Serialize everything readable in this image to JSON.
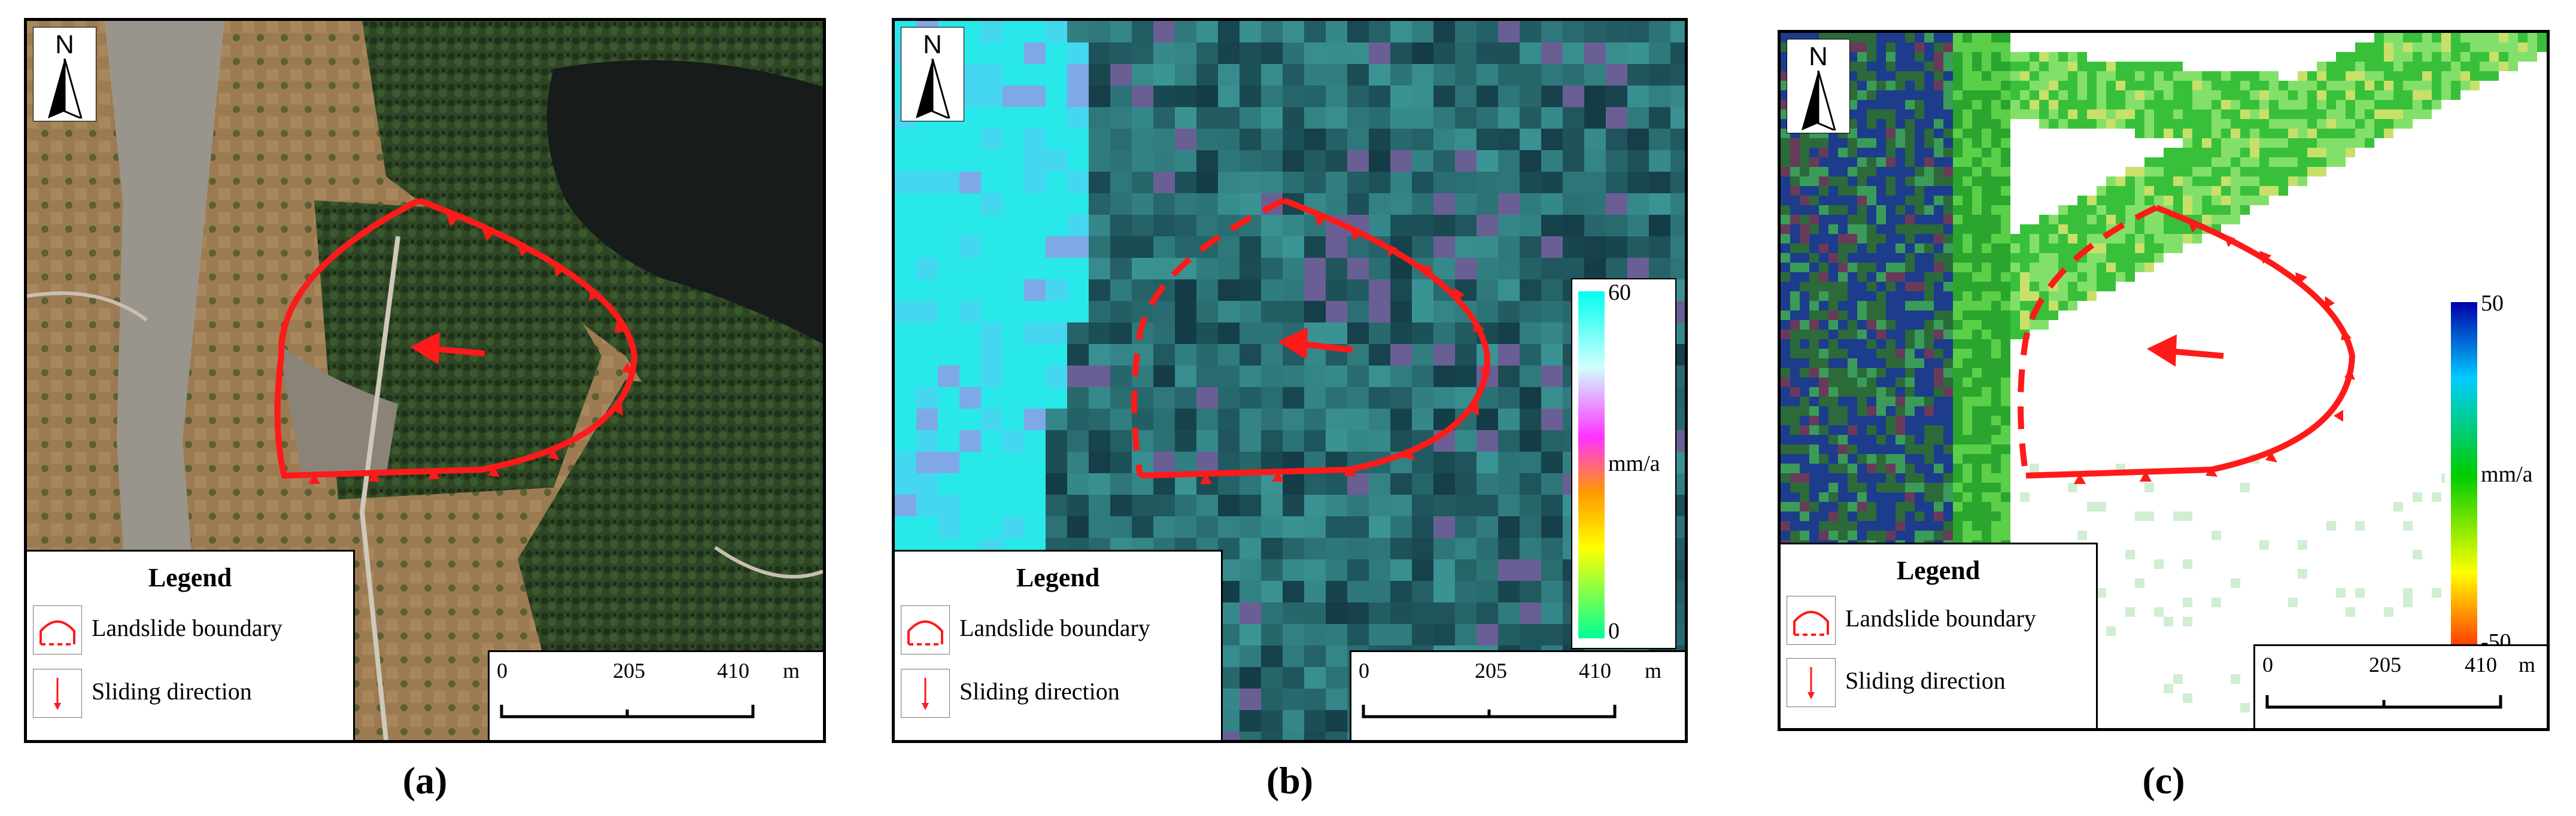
{
  "panels": [
    {
      "id": "a",
      "caption": "(a)",
      "north_label": "N",
      "legend": {
        "title": "Legend",
        "boundary_label": "Landslide boundary",
        "direction_label": "Sliding direction"
      },
      "scale": {
        "ticks": [
          "0",
          "205",
          "410"
        ],
        "unit": "m"
      }
    },
    {
      "id": "b",
      "caption": "(b)",
      "north_label": "N",
      "legend": {
        "title": "Legend",
        "boundary_label": "Landslide boundary",
        "direction_label": "Sliding direction"
      },
      "scale": {
        "ticks": [
          "0",
          "205",
          "410"
        ],
        "unit": "m"
      },
      "colorbar": {
        "max": "60",
        "min": "0",
        "unit": "mm/a",
        "colors": [
          "#00ffee",
          "#d0ffff",
          "#ff33ff",
          "#ff9900",
          "#ffff00",
          "#00ff99"
        ]
      }
    },
    {
      "id": "c",
      "caption": "(c)",
      "north_label": "N",
      "legend": {
        "title": "Legend",
        "boundary_label": "Landslide boundary",
        "direction_label": "Sliding direction"
      },
      "scale": {
        "ticks": [
          "0",
          "205",
          "410"
        ],
        "unit": "m"
      },
      "colorbar": {
        "max": "50",
        "min": "-50",
        "unit": "mm/a",
        "colors": [
          "#0000aa",
          "#00ccff",
          "#00cc00",
          "#ffff00",
          "#ff3300"
        ]
      }
    }
  ],
  "symbology": {
    "boundary_color": "#ff1a1a"
  }
}
